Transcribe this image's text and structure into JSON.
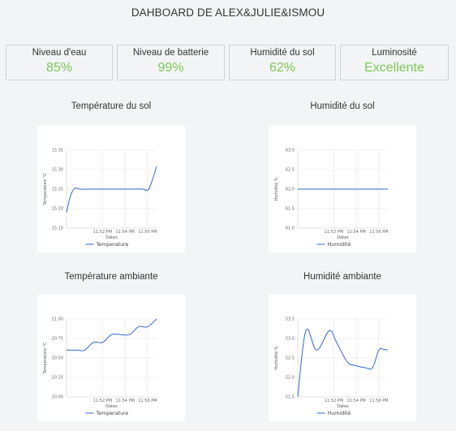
{
  "header": {
    "title": "DAHBOARD DE ALEX&JULIE&ISMOU"
  },
  "cards": [
    {
      "label": "Niveau d'eau",
      "value": "85%"
    },
    {
      "label": "Niveau de batterie",
      "value": "99%"
    },
    {
      "label": "Humidité du sol",
      "value": "62%"
    },
    {
      "label": "Luminosité",
      "value": "Excellente"
    }
  ],
  "colors": {
    "accent": "#7bc854",
    "line": "#3366cc"
  },
  "chart_data": [
    {
      "type": "line",
      "title": "Température du sol",
      "xlabel": "Dates",
      "ylabel": "Temperature °C",
      "yticks": [
        "15.35",
        "15.30",
        "15.25",
        "15.20",
        "15.15"
      ],
      "ylim": [
        15.15,
        15.35
      ],
      "xticks": [
        "11:52 PM",
        "11:54 PM",
        "11:56 PM"
      ],
      "xlim": [
        0,
        10
      ],
      "xtick_positions": [
        4,
        6.5,
        9
      ],
      "series": [
        {
          "name": "Temperature",
          "x": [
            0,
            0.4,
            0.9,
            1.5,
            3,
            5,
            7,
            8.5,
            9,
            9.4,
            10
          ],
          "y": [
            15.19,
            15.23,
            15.252,
            15.25,
            15.25,
            15.25,
            15.25,
            15.25,
            15.247,
            15.265,
            15.308
          ]
        }
      ]
    },
    {
      "type": "line",
      "title": "Humidité du sol",
      "xlabel": "Dates",
      "ylabel": "Humidité %",
      "yticks": [
        "63.0",
        "62.5",
        "62.0",
        "61.5",
        "61.0"
      ],
      "ylim": [
        61.0,
        63.0
      ],
      "xticks": [
        "11:52 PM",
        "11:54 PM",
        "11:56 PM"
      ],
      "xlim": [
        0,
        10
      ],
      "xtick_positions": [
        4,
        6.5,
        9
      ],
      "series": [
        {
          "name": "Humidité",
          "x": [
            0,
            10
          ],
          "y": [
            62.0,
            62.0
          ]
        }
      ]
    },
    {
      "type": "line",
      "title": "Température ambiante",
      "xlabel": "Dates",
      "ylabel": "Temperature °C",
      "yticks": [
        "21.00",
        "20.75",
        "20.50",
        "20.25",
        "20.00"
      ],
      "ylim": [
        20.0,
        21.0
      ],
      "xticks": [
        "11:52 PM",
        "11:54 PM",
        "11:56 PM"
      ],
      "xlim": [
        0,
        10
      ],
      "xtick_positions": [
        4,
        6.5,
        9
      ],
      "series": [
        {
          "name": "Temperature",
          "x": [
            0,
            1.2,
            2,
            3,
            4,
            5,
            6,
            7,
            8,
            9,
            10
          ],
          "y": [
            20.6,
            20.6,
            20.6,
            20.7,
            20.7,
            20.8,
            20.8,
            20.8,
            20.9,
            20.9,
            21.0
          ]
        }
      ]
    },
    {
      "type": "line",
      "title": "Humidité ambiante",
      "xlabel": "Dates",
      "ylabel": "Humidité %",
      "yticks": [
        "53.5",
        "53.0",
        "52.5",
        "52.0",
        "51.5"
      ],
      "ylim": [
        51.5,
        53.5
      ],
      "xticks": [
        "11:52 PM",
        "11:54 PM",
        "11:56 PM"
      ],
      "xlim": [
        0,
        10
      ],
      "xtick_positions": [
        4,
        6.5,
        9
      ],
      "series": [
        {
          "name": "Humidité",
          "x": [
            0,
            0.9,
            2.1,
            3.5,
            4.3,
            5.5,
            6.5,
            7.5,
            8.3,
            9,
            9.6,
            10
          ],
          "y": [
            51.5,
            53.2,
            52.7,
            53.2,
            52.9,
            52.4,
            52.3,
            52.25,
            52.25,
            52.7,
            52.72,
            52.7
          ]
        }
      ]
    }
  ]
}
